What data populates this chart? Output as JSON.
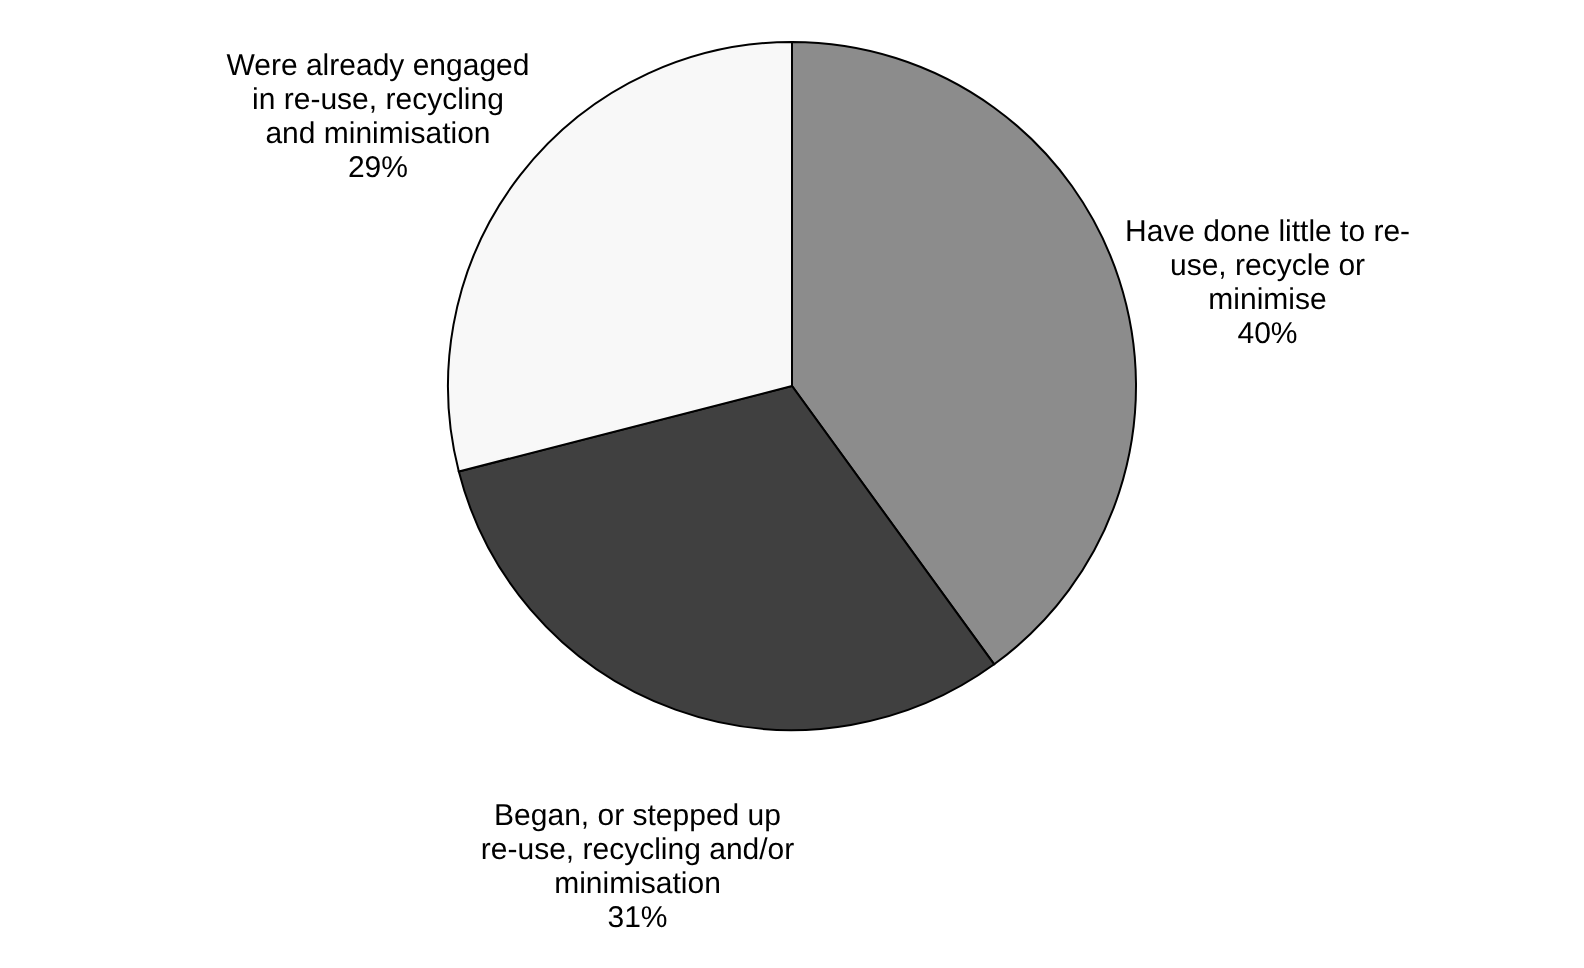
{
  "chart_data": {
    "type": "pie",
    "categories": [
      "Have done little to re-use, recycle or minimise",
      "Began, or stepped up re-use, recycling and/or minimisation",
      "Were already engaged in re-use, recycling and minimisation"
    ],
    "values": [
      40,
      31,
      29
    ],
    "colors": [
      "#8c8c8c",
      "#404040",
      "#f8f8f8"
    ],
    "value_labels": [
      "40%",
      "31%",
      "29%"
    ]
  }
}
